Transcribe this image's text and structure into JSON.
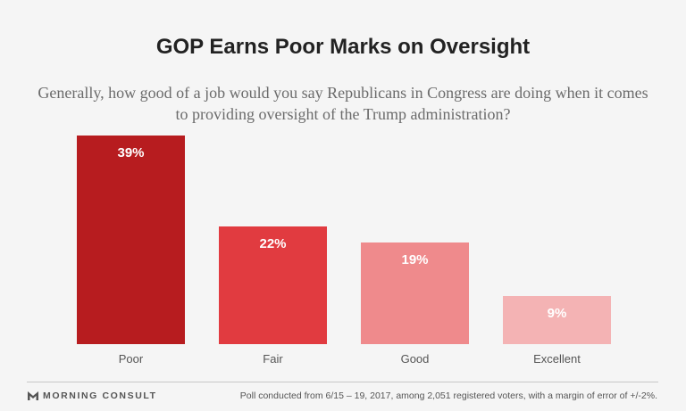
{
  "title": "GOP Earns Poor Marks on Oversight",
  "subtitle": "Generally, how good of a job would you say Republicans in Congress are doing when it comes to providing oversight of the Trump administration?",
  "chart_data": {
    "type": "bar",
    "categories": [
      "Poor",
      "Fair",
      "Good",
      "Excellent"
    ],
    "values": [
      39,
      22,
      19,
      9
    ],
    "data_labels": [
      "39%",
      "22%",
      "19%",
      "9%"
    ],
    "colors": [
      "#b71c1f",
      "#e13b40",
      "#ef8a8c",
      "#f4b3b4"
    ],
    "unit": "%",
    "ylim": [
      0,
      39
    ],
    "grid": false,
    "legend": "none"
  },
  "footer": {
    "brand": "MORNING CONSULT",
    "note": "Poll conducted from 6/15 – 19, 2017, among 2,051 registered voters, with a margin of error of +/-2%."
  },
  "colors": {
    "background": "#f5f5f5",
    "title": "#222222",
    "subtitle": "#6b6b6b",
    "axis_label": "#555555",
    "bar_label": "#ffffff"
  },
  "icons": {
    "brand_logo": "morning-consult-logo-icon"
  }
}
